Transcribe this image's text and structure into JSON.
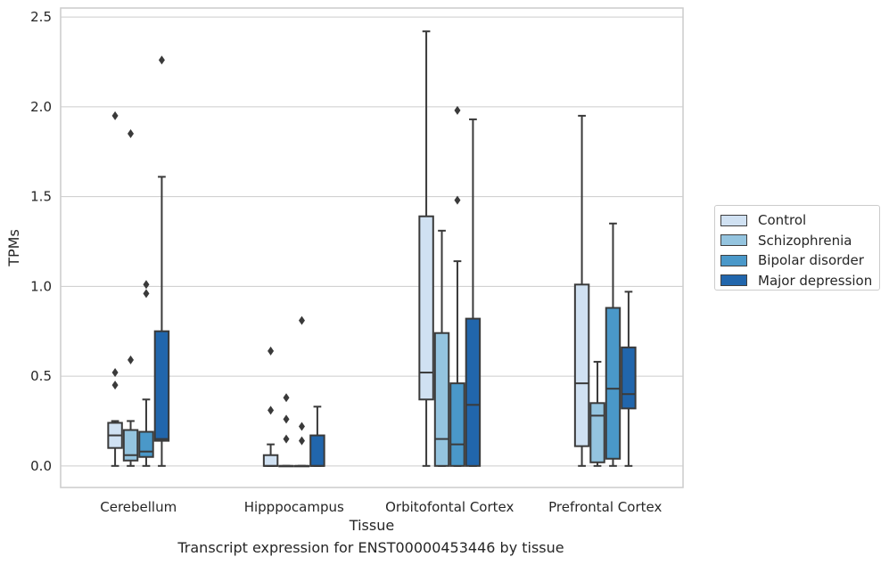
{
  "chart_data": {
    "type": "boxplot",
    "xlabel": "Tissue",
    "ylabel": "TPMs",
    "ylim": [
      -0.12,
      2.55
    ],
    "yticks": [
      "0.0",
      "0.5",
      "1.0",
      "1.5",
      "2.0",
      "2.5"
    ],
    "ytick_values": [
      0.0,
      0.5,
      1.0,
      1.5,
      2.0,
      2.5
    ],
    "grid": true,
    "legend_placement": "outside-right",
    "categories": [
      "Cerebellum",
      "Hipppocampus",
      "Orbitofontal Cortex",
      "Prefrontal Cortex"
    ],
    "series": [
      {
        "name": "Control",
        "color": "#d0e1f2",
        "boxes": [
          {
            "whislo": 0.0,
            "q1": 0.1,
            "med": 0.17,
            "q3": 0.24,
            "whishi": 0.25,
            "fliers": [
              1.95,
              0.52,
              0.45
            ]
          },
          {
            "whislo": 0.0,
            "q1": 0.0,
            "med": 0.0,
            "q3": 0.06,
            "whishi": 0.12,
            "fliers": [
              0.64,
              0.31
            ]
          },
          {
            "whislo": 0.0,
            "q1": 0.37,
            "med": 0.52,
            "q3": 1.39,
            "whishi": 2.42,
            "fliers": []
          },
          {
            "whislo": 0.0,
            "q1": 0.11,
            "med": 0.46,
            "q3": 1.01,
            "whishi": 1.95,
            "fliers": []
          }
        ]
      },
      {
        "name": "Schizophrenia",
        "color": "#94c4df",
        "boxes": [
          {
            "whislo": 0.0,
            "q1": 0.03,
            "med": 0.06,
            "q3": 0.2,
            "whishi": 0.25,
            "fliers": [
              1.85,
              0.59
            ]
          },
          {
            "whislo": 0.0,
            "q1": 0.0,
            "med": 0.0,
            "q3": 0.0,
            "whishi": 0.0,
            "fliers": [
              0.38,
              0.26,
              0.15
            ]
          },
          {
            "whislo": 0.0,
            "q1": 0.0,
            "med": 0.15,
            "q3": 0.74,
            "whishi": 1.31,
            "fliers": []
          },
          {
            "whislo": 0.0,
            "q1": 0.02,
            "med": 0.28,
            "q3": 0.35,
            "whishi": 0.58,
            "fliers": []
          }
        ]
      },
      {
        "name": "Bipolar disorder",
        "color": "#4a98c9",
        "boxes": [
          {
            "whislo": 0.0,
            "q1": 0.05,
            "med": 0.08,
            "q3": 0.19,
            "whishi": 0.37,
            "fliers": [
              1.01,
              0.96
            ]
          },
          {
            "whislo": 0.0,
            "q1": 0.0,
            "med": 0.0,
            "q3": 0.0,
            "whishi": 0.0,
            "fliers": [
              0.81,
              0.22,
              0.14
            ]
          },
          {
            "whislo": 0.0,
            "q1": 0.0,
            "med": 0.12,
            "q3": 0.46,
            "whishi": 1.14,
            "fliers": [
              1.98,
              1.48
            ]
          },
          {
            "whislo": 0.0,
            "q1": 0.04,
            "med": 0.43,
            "q3": 0.88,
            "whishi": 1.35,
            "fliers": []
          }
        ]
      },
      {
        "name": "Major depression",
        "color": "#2166ac",
        "boxes": [
          {
            "whislo": 0.0,
            "q1": 0.14,
            "med": 0.15,
            "q3": 0.75,
            "whishi": 1.61,
            "fliers": [
              2.26
            ]
          },
          {
            "whislo": 0.0,
            "q1": 0.0,
            "med": 0.0,
            "q3": 0.17,
            "whishi": 0.33,
            "fliers": []
          },
          {
            "whislo": 0.0,
            "q1": 0.0,
            "med": 0.34,
            "q3": 0.82,
            "whishi": 1.93,
            "fliers": []
          },
          {
            "whislo": 0.0,
            "q1": 0.32,
            "med": 0.4,
            "q3": 0.66,
            "whishi": 0.97,
            "fliers": []
          }
        ]
      }
    ]
  },
  "caption": "Transcript expression for ENST00000453446 by tissue"
}
